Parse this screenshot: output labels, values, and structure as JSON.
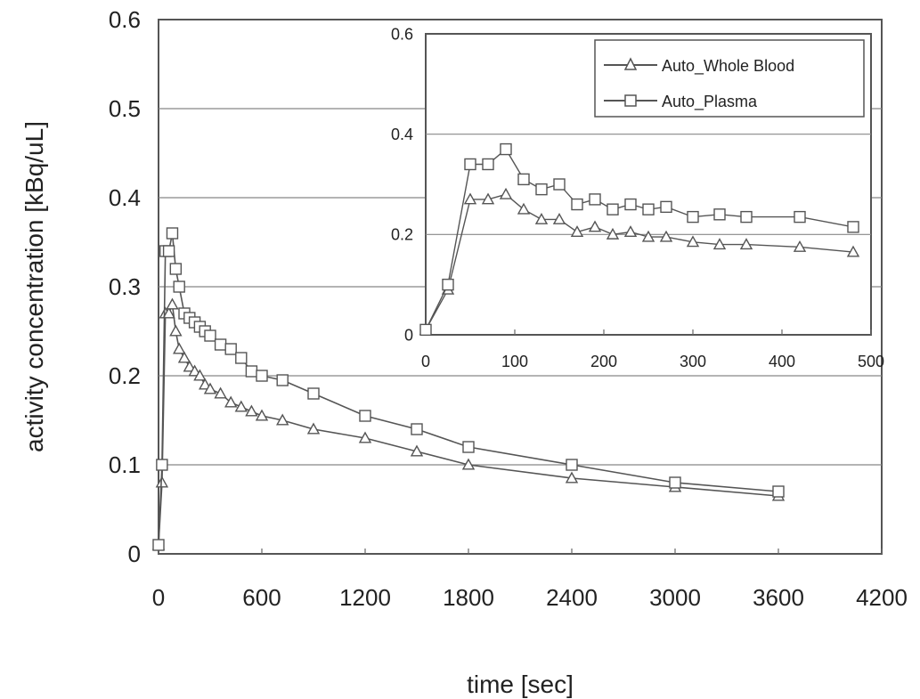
{
  "chart_data": [
    {
      "type": "line",
      "xlabel": "time [sec]",
      "ylabel": "activity concentration [kBq/uL]",
      "xlim": [
        0,
        4200
      ],
      "ylim": [
        0,
        0.6
      ],
      "x_ticks": [
        "0",
        "600",
        "1200",
        "1800",
        "2400",
        "3000",
        "3600",
        "4200"
      ],
      "y_ticks": [
        "0",
        "0.1",
        "0.2",
        "0.3",
        "0.4",
        "0.5",
        "0.6"
      ],
      "grid": "horizontal",
      "series": [
        {
          "name": "Auto_Whole Blood",
          "marker": "triangle",
          "color": "#555555",
          "x": [
            0,
            20,
            40,
            60,
            80,
            100,
            120,
            150,
            180,
            210,
            240,
            270,
            300,
            360,
            420,
            480,
            540,
            600,
            720,
            900,
            1200,
            1500,
            1800,
            2400,
            3000,
            3600
          ],
          "y": [
            0.01,
            0.08,
            0.27,
            0.27,
            0.28,
            0.25,
            0.23,
            0.22,
            0.21,
            0.205,
            0.2,
            0.19,
            0.185,
            0.18,
            0.17,
            0.165,
            0.16,
            0.155,
            0.15,
            0.14,
            0.13,
            0.115,
            0.1,
            0.085,
            0.075,
            0.065
          ]
        },
        {
          "name": "Auto_Plasma",
          "marker": "square",
          "color": "#555555",
          "x": [
            0,
            20,
            40,
            60,
            80,
            100,
            120,
            150,
            180,
            210,
            240,
            270,
            300,
            360,
            420,
            480,
            540,
            600,
            720,
            900,
            1200,
            1500,
            1800,
            2400,
            3000,
            3600
          ],
          "y": [
            0.01,
            0.1,
            0.34,
            0.34,
            0.36,
            0.32,
            0.3,
            0.27,
            0.265,
            0.26,
            0.255,
            0.25,
            0.245,
            0.235,
            0.23,
            0.22,
            0.205,
            0.2,
            0.195,
            0.18,
            0.155,
            0.14,
            0.12,
            0.1,
            0.08,
            0.07
          ]
        }
      ]
    },
    {
      "type": "line",
      "role": "inset",
      "xlim": [
        0,
        500
      ],
      "ylim": [
        0,
        0.6
      ],
      "x_ticks": [
        "0",
        "100",
        "200",
        "300",
        "400",
        "500"
      ],
      "y_ticks": [
        "0",
        "0.2",
        "0.4",
        "0.6"
      ],
      "grid": "horizontal",
      "legend": "top-right",
      "series": [
        {
          "name": "Auto_Whole Blood",
          "marker": "triangle",
          "color": "#555555",
          "x": [
            0,
            25,
            50,
            70,
            90,
            110,
            130,
            150,
            170,
            190,
            210,
            230,
            250,
            270,
            300,
            330,
            360,
            420,
            480
          ],
          "y": [
            0.01,
            0.09,
            0.27,
            0.27,
            0.28,
            0.25,
            0.23,
            0.23,
            0.205,
            0.215,
            0.2,
            0.205,
            0.195,
            0.195,
            0.185,
            0.18,
            0.18,
            0.175,
            0.165
          ]
        },
        {
          "name": "Auto_Plasma",
          "marker": "square",
          "color": "#555555",
          "x": [
            0,
            25,
            50,
            70,
            90,
            110,
            130,
            150,
            170,
            190,
            210,
            230,
            250,
            270,
            300,
            330,
            360,
            420,
            480
          ],
          "y": [
            0.01,
            0.1,
            0.34,
            0.34,
            0.37,
            0.31,
            0.29,
            0.3,
            0.26,
            0.27,
            0.25,
            0.26,
            0.25,
            0.255,
            0.235,
            0.24,
            0.235,
            0.235,
            0.215
          ]
        }
      ]
    }
  ]
}
